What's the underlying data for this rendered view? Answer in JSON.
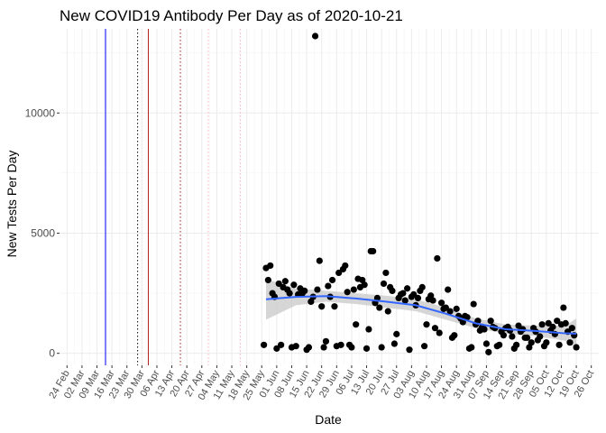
{
  "chart_data": {
    "type": "scatter",
    "title": "New COVID19 Antibody Per Day as of 2020-10-21",
    "xlabel": "Date",
    "ylabel": "New Tests Per Day",
    "x_start": "2020-02-24",
    "x_end": "2020-10-26",
    "ylim": [
      -500,
      13500
    ],
    "y_ticks": [
      0,
      5000,
      10000
    ],
    "x_tick_labels": [
      "24 Feb",
      "02 Mar",
      "09 Mar",
      "16 Mar",
      "23 Mar",
      "30 Mar",
      "06 Apr",
      "13 Apr",
      "20 Apr",
      "27 Apr",
      "04 May",
      "11 May",
      "18 May",
      "25 May",
      "01 Jun",
      "08 Jun",
      "15 Jun",
      "22 Jun",
      "29 Jun",
      "06 Jul",
      "13 Jul",
      "20 Jul",
      "27 Jul",
      "03 Aug",
      "10 Aug",
      "17 Aug",
      "24 Aug",
      "31 Aug",
      "07 Sep",
      "14 Sep",
      "21 Sep",
      "28 Sep",
      "05 Oct",
      "12 Oct",
      "19 Oct",
      "26 Oct"
    ],
    "grid": true,
    "colors": {
      "points": "#000000",
      "smooth_line": "#3366ff",
      "confidence_band": "#c8c8c8",
      "grid_major": "#ebebeb",
      "vline_blue": "#0000ff",
      "vline_red": "#b22222",
      "vline_dotted": "#000000",
      "vline_red_dotted": "#b22222",
      "vline_pink": "#ffb6c1"
    },
    "vlines": [
      {
        "date": "2020-03-13",
        "style": "solid",
        "color": "blue"
      },
      {
        "date": "2020-03-28",
        "style": "dotted",
        "color": "black"
      },
      {
        "date": "2020-04-02",
        "style": "solid",
        "color": "red"
      },
      {
        "date": "2020-04-17",
        "style": "dotted",
        "color": "red"
      },
      {
        "date": "2020-04-30",
        "style": "dotted",
        "color": "pink"
      },
      {
        "date": "2020-05-15",
        "style": "dotted",
        "color": "pink"
      }
    ],
    "series": [
      {
        "points": [
          [
            "2020-05-26",
            350
          ],
          [
            "2020-05-27",
            3550
          ],
          [
            "2020-05-28",
            3050
          ],
          [
            "2020-05-29",
            3650
          ],
          [
            "2020-05-30",
            2500
          ],
          [
            "2020-05-31",
            2350
          ],
          [
            "2020-06-01",
            200
          ],
          [
            "2020-06-02",
            2900
          ],
          [
            "2020-06-03",
            350
          ],
          [
            "2020-06-04",
            2750
          ],
          [
            "2020-06-05",
            3000
          ],
          [
            "2020-06-06",
            2650
          ],
          [
            "2020-06-07",
            2500
          ],
          [
            "2020-06-08",
            250
          ],
          [
            "2020-06-09",
            2850
          ],
          [
            "2020-06-10",
            300
          ],
          [
            "2020-06-11",
            2450
          ],
          [
            "2020-06-12",
            2700
          ],
          [
            "2020-06-13",
            2500
          ],
          [
            "2020-06-14",
            2600
          ],
          [
            "2020-06-15",
            150
          ],
          [
            "2020-06-16",
            250
          ],
          [
            "2020-06-17",
            2150
          ],
          [
            "2020-06-18",
            2350
          ],
          [
            "2020-06-19",
            13200
          ],
          [
            "2020-06-20",
            2650
          ],
          [
            "2020-06-21",
            3850
          ],
          [
            "2020-06-22",
            1950
          ],
          [
            "2020-06-23",
            250
          ],
          [
            "2020-06-24",
            500
          ],
          [
            "2020-06-25",
            2800
          ],
          [
            "2020-06-26",
            2350
          ],
          [
            "2020-06-27",
            3050
          ],
          [
            "2020-06-28",
            1950
          ],
          [
            "2020-06-29",
            300
          ],
          [
            "2020-06-30",
            3350
          ],
          [
            "2020-07-01",
            350
          ],
          [
            "2020-07-02",
            3500
          ],
          [
            "2020-07-03",
            3650
          ],
          [
            "2020-07-04",
            2550
          ],
          [
            "2020-07-05",
            350
          ],
          [
            "2020-07-06",
            250
          ],
          [
            "2020-07-07",
            2650
          ],
          [
            "2020-07-08",
            1200
          ],
          [
            "2020-07-09",
            3100
          ],
          [
            "2020-07-10",
            2750
          ],
          [
            "2020-07-11",
            3050
          ],
          [
            "2020-07-12",
            2850
          ],
          [
            "2020-07-13",
            200
          ],
          [
            "2020-07-14",
            1000
          ],
          [
            "2020-07-15",
            4250
          ],
          [
            "2020-07-16",
            4250
          ],
          [
            "2020-07-17",
            2100
          ],
          [
            "2020-07-18",
            2300
          ],
          [
            "2020-07-19",
            1900
          ],
          [
            "2020-07-20",
            250
          ],
          [
            "2020-07-21",
            2900
          ],
          [
            "2020-07-22",
            3350
          ],
          [
            "2020-07-23",
            1750
          ],
          [
            "2020-07-24",
            2750
          ],
          [
            "2020-07-25",
            2600
          ],
          [
            "2020-07-26",
            400
          ],
          [
            "2020-07-27",
            800
          ],
          [
            "2020-07-28",
            2300
          ],
          [
            "2020-07-29",
            2450
          ],
          [
            "2020-07-30",
            2500
          ],
          [
            "2020-07-31",
            2200
          ],
          [
            "2020-08-01",
            2700
          ],
          [
            "2020-08-02",
            150
          ],
          [
            "2020-08-03",
            2350
          ],
          [
            "2020-08-04",
            2450
          ],
          [
            "2020-08-05",
            2000
          ],
          [
            "2020-08-06",
            2300
          ],
          [
            "2020-08-07",
            2600
          ],
          [
            "2020-08-08",
            2750
          ],
          [
            "2020-08-09",
            300
          ],
          [
            "2020-08-10",
            1200
          ],
          [
            "2020-08-11",
            2250
          ],
          [
            "2020-08-12",
            2400
          ],
          [
            "2020-08-13",
            2200
          ],
          [
            "2020-08-14",
            1050
          ],
          [
            "2020-08-15",
            3950
          ],
          [
            "2020-08-16",
            850
          ],
          [
            "2020-08-17",
            2100
          ],
          [
            "2020-08-18",
            1850
          ],
          [
            "2020-08-19",
            1900
          ],
          [
            "2020-08-20",
            2650
          ],
          [
            "2020-08-21",
            1750
          ],
          [
            "2020-08-22",
            650
          ],
          [
            "2020-08-23",
            750
          ],
          [
            "2020-08-24",
            1850
          ],
          [
            "2020-08-25",
            1550
          ],
          [
            "2020-08-26",
            1450
          ],
          [
            "2020-08-27",
            1300
          ],
          [
            "2020-08-28",
            1550
          ],
          [
            "2020-08-29",
            1500
          ],
          [
            "2020-08-30",
            200
          ],
          [
            "2020-08-31",
            250
          ],
          [
            "2020-09-01",
            2050
          ],
          [
            "2020-09-02",
            1200
          ],
          [
            "2020-09-03",
            1350
          ],
          [
            "2020-09-04",
            950
          ],
          [
            "2020-09-05",
            1100
          ],
          [
            "2020-09-06",
            1000
          ],
          [
            "2020-09-07",
            400
          ],
          [
            "2020-09-08",
            50
          ],
          [
            "2020-09-09",
            1350
          ],
          [
            "2020-09-10",
            1100
          ],
          [
            "2020-09-11",
            1050
          ],
          [
            "2020-09-12",
            300
          ],
          [
            "2020-09-13",
            350
          ],
          [
            "2020-09-14",
            900
          ],
          [
            "2020-09-15",
            750
          ],
          [
            "2020-09-16",
            1050
          ],
          [
            "2020-09-17",
            1100
          ],
          [
            "2020-09-18",
            950
          ],
          [
            "2020-09-19",
            700
          ],
          [
            "2020-09-20",
            200
          ],
          [
            "2020-09-21",
            350
          ],
          [
            "2020-09-22",
            1150
          ],
          [
            "2020-09-23",
            900
          ],
          [
            "2020-09-24",
            1000
          ],
          [
            "2020-09-25",
            650
          ],
          [
            "2020-09-26",
            650
          ],
          [
            "2020-09-27",
            250
          ],
          [
            "2020-09-28",
            450
          ],
          [
            "2020-09-29",
            1050
          ],
          [
            "2020-09-30",
            900
          ],
          [
            "2020-10-01",
            550
          ],
          [
            "2020-10-02",
            700
          ],
          [
            "2020-10-03",
            1200
          ],
          [
            "2020-10-04",
            300
          ],
          [
            "2020-10-05",
            450
          ],
          [
            "2020-10-06",
            1250
          ],
          [
            "2020-10-07",
            950
          ],
          [
            "2020-10-08",
            1100
          ],
          [
            "2020-10-09",
            800
          ],
          [
            "2020-10-10",
            1350
          ],
          [
            "2020-10-11",
            350
          ],
          [
            "2020-10-12",
            1200
          ],
          [
            "2020-10-13",
            1900
          ],
          [
            "2020-10-14",
            1250
          ],
          [
            "2020-10-15",
            900
          ],
          [
            "2020-10-16",
            450
          ],
          [
            "2020-10-17",
            1050
          ],
          [
            "2020-10-18",
            750
          ],
          [
            "2020-10-19",
            250
          ]
        ]
      }
    ],
    "smooth": {
      "points": [
        [
          "2020-05-27",
          2250
        ],
        [
          "2020-06-10",
          2350
        ],
        [
          "2020-06-24",
          2380
        ],
        [
          "2020-07-08",
          2280
        ],
        [
          "2020-07-22",
          2150
        ],
        [
          "2020-08-05",
          2000
        ],
        [
          "2020-08-19",
          1650
        ],
        [
          "2020-09-02",
          1250
        ],
        [
          "2020-09-16",
          1000
        ],
        [
          "2020-09-30",
          930
        ],
        [
          "2020-10-14",
          830
        ],
        [
          "2020-10-19",
          820
        ]
      ],
      "band_lower": [
        1400,
        2000,
        2150,
        2050,
        1900,
        1750,
        1400,
        1050,
        820,
        720,
        520,
        200
      ],
      "band_upper": [
        3100,
        2700,
        2600,
        2500,
        2400,
        2250,
        1900,
        1450,
        1200,
        1150,
        1150,
        1450
      ]
    }
  }
}
